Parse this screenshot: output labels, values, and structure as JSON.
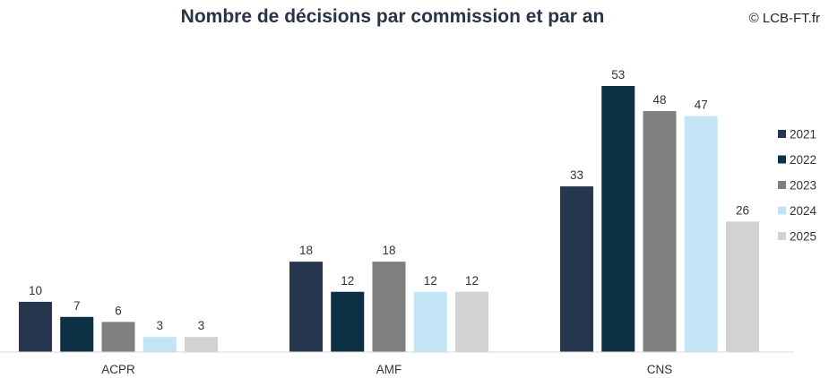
{
  "header": {
    "title": "Nombre de décisions par commission et par an",
    "copyright": "© LCB-FT.fr"
  },
  "chart_data": {
    "type": "bar",
    "title": "Nombre de décisions par commission et par an",
    "categories": [
      "ACPR",
      "AMF",
      "CNS"
    ],
    "series": [
      {
        "name": "2021",
        "color": "#283750",
        "values": [
          10,
          18,
          33
        ]
      },
      {
        "name": "2022",
        "color": "#0d3044",
        "values": [
          7,
          12,
          53
        ]
      },
      {
        "name": "2023",
        "color": "#7f7f7f",
        "values": [
          6,
          18,
          48
        ]
      },
      {
        "name": "2024",
        "color": "#c2e4f4",
        "values": [
          3,
          12,
          47
        ]
      },
      {
        "name": "2025",
        "color": "#d2d2d2",
        "values": [
          3,
          12,
          26
        ]
      }
    ],
    "xlabel": "",
    "ylabel": "",
    "ylim": [
      0,
      53
    ],
    "grid": false,
    "legend": "right",
    "data_labels": true
  }
}
